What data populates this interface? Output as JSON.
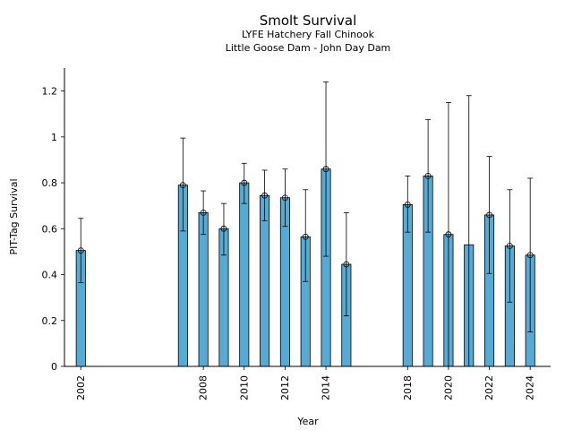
{
  "chart_data": {
    "type": "bar",
    "title": "Smolt Survival",
    "subtitle_line1": "LYFE Hatchery Fall Chinook",
    "subtitle_line2": "Little Goose Dam - John Day Dam",
    "xlabel": "Year",
    "ylabel": "PIT-Tag Survival",
    "xlim": [
      2001.2,
      2025.0
    ],
    "ylim": [
      0,
      1.3
    ],
    "xticks": [
      2002,
      2008,
      2010,
      2012,
      2014,
      2018,
      2020,
      2022,
      2024
    ],
    "yticks": [
      0,
      0.2,
      0.4,
      0.6,
      0.8,
      1,
      1.2
    ],
    "ytick_labels": [
      "0",
      "0.2",
      "0.4",
      "0.6",
      "0.8",
      "1",
      "1.2"
    ],
    "bar_color": "#56aad4",
    "grid": false,
    "points": [
      {
        "year": 2002,
        "value": 0.505,
        "lower": 0.365,
        "upper": 0.645,
        "marker": true
      },
      {
        "year": 2007,
        "value": 0.79,
        "lower": 0.59,
        "upper": 0.995,
        "marker": true
      },
      {
        "year": 2008,
        "value": 0.67,
        "lower": 0.575,
        "upper": 0.765,
        "marker": true
      },
      {
        "year": 2009,
        "value": 0.6,
        "lower": 0.485,
        "upper": 0.71,
        "marker": true
      },
      {
        "year": 2010,
        "value": 0.8,
        "lower": 0.71,
        "upper": 0.885,
        "marker": true
      },
      {
        "year": 2011,
        "value": 0.745,
        "lower": 0.635,
        "upper": 0.855,
        "marker": true
      },
      {
        "year": 2012,
        "value": 0.735,
        "lower": 0.61,
        "upper": 0.86,
        "marker": true
      },
      {
        "year": 2013,
        "value": 0.565,
        "lower": 0.37,
        "upper": 0.77,
        "marker": true
      },
      {
        "year": 2014,
        "value": 0.86,
        "lower": 0.48,
        "upper": 1.24,
        "marker": true
      },
      {
        "year": 2015,
        "value": 0.445,
        "lower": 0.22,
        "upper": 0.67,
        "marker": true
      },
      {
        "year": 2018,
        "value": 0.705,
        "lower": 0.585,
        "upper": 0.83,
        "marker": true
      },
      {
        "year": 2019,
        "value": 0.83,
        "lower": 0.585,
        "upper": 1.075,
        "marker": true
      },
      {
        "year": 2020,
        "value": 0.575,
        "lower": 0.0,
        "upper": 1.15,
        "marker": true
      },
      {
        "year": 2021,
        "value": 0.53,
        "lower": 0.0,
        "upper": 1.18,
        "marker": false
      },
      {
        "year": 2022,
        "value": 0.66,
        "lower": 0.405,
        "upper": 0.915,
        "marker": true
      },
      {
        "year": 2023,
        "value": 0.525,
        "lower": 0.28,
        "upper": 0.77,
        "marker": true
      },
      {
        "year": 2024,
        "value": 0.485,
        "lower": 0.15,
        "upper": 0.82,
        "marker": true
      }
    ]
  }
}
